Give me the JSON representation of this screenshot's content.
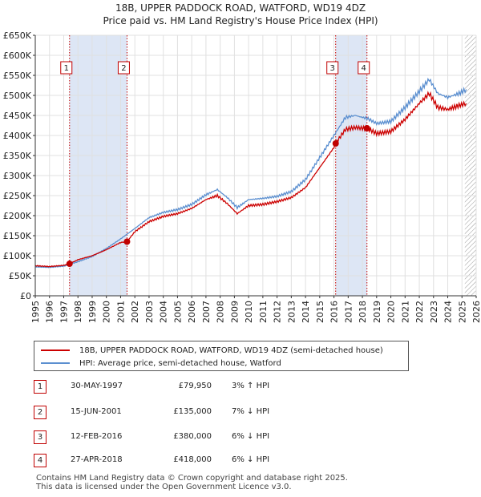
{
  "title_line1": "18B, UPPER PADDOCK ROAD, WATFORD, WD19 4DZ",
  "title_line2": "Price paid vs. HM Land Registry's House Price Index (HPI)",
  "colors": {
    "property": "#cc0000",
    "hpi": "#5b8fd0",
    "shade": "#dde6f5",
    "marker": "#c00000"
  },
  "legend": {
    "property_label": "18B, UPPER PADDOCK ROAD, WATFORD, WD19 4DZ (semi-detached house)",
    "hpi_label": "HPI: Average price, semi-detached house, Watford"
  },
  "transactions": [
    {
      "marker": "1",
      "date": "30-MAY-1997",
      "price": "£79,950",
      "hpi_change": "3% ↑ HPI",
      "x": 1997.41,
      "y": 79950
    },
    {
      "marker": "2",
      "date": "15-JUN-2001",
      "price": "£135,000",
      "hpi_change": "7% ↓ HPI",
      "x": 2001.45,
      "y": 135000
    },
    {
      "marker": "3",
      "date": "12-FEB-2016",
      "price": "£380,000",
      "hpi_change": "6% ↓ HPI",
      "x": 2016.12,
      "y": 380000
    },
    {
      "marker": "4",
      "date": "27-APR-2018",
      "price": "£418,000",
      "hpi_change": "6% ↓ HPI",
      "x": 2018.32,
      "y": 418000
    }
  ],
  "footer": {
    "line1": "Contains HM Land Registry data © Crown copyright and database right 2025.",
    "line2": "This data is licensed under the Open Government Licence v3.0."
  },
  "chart_data": {
    "type": "line",
    "title": "Price paid vs. HM Land Registry's House Price Index (HPI)",
    "xlabel": "",
    "ylabel": "",
    "xlim": [
      1995,
      2026
    ],
    "ylim": [
      0,
      650000
    ],
    "grid": true,
    "legend_position": "below",
    "x_ticks": [
      "1995",
      "1996",
      "1997",
      "1998",
      "1999",
      "2000",
      "2001",
      "2002",
      "2003",
      "2004",
      "2005",
      "2006",
      "2007",
      "2008",
      "2009",
      "2010",
      "2011",
      "2012",
      "2013",
      "2014",
      "2015",
      "2016",
      "2017",
      "2018",
      "2019",
      "2020",
      "2021",
      "2022",
      "2023",
      "2024",
      "2025",
      "2026"
    ],
    "y_ticks": [
      "£0",
      "£50K",
      "£100K",
      "£150K",
      "£200K",
      "£250K",
      "£300K",
      "£350K",
      "£400K",
      "£450K",
      "£500K",
      "£550K",
      "£600K",
      "£650K"
    ],
    "shaded_ranges": [
      [
        1997.41,
        2001.45
      ],
      [
        2016.12,
        2018.32
      ]
    ],
    "future_hatch_start": 2025.2,
    "series": [
      {
        "name": "18B, UPPER PADDOCK ROAD, WATFORD, WD19 4DZ (semi-detached house)",
        "points": [
          [
            1995,
            75000
          ],
          [
            1996,
            73000
          ],
          [
            1997,
            76000
          ],
          [
            1997.41,
            79950
          ],
          [
            1998,
            90000
          ],
          [
            1999,
            100000
          ],
          [
            2000,
            115000
          ],
          [
            2001,
            133000
          ],
          [
            2001.45,
            135000
          ],
          [
            2002,
            160000
          ],
          [
            2003,
            185000
          ],
          [
            2004,
            198000
          ],
          [
            2005,
            205000
          ],
          [
            2006,
            218000
          ],
          [
            2007,
            240000
          ],
          [
            2007.8,
            250000
          ],
          [
            2008.5,
            230000
          ],
          [
            2009.2,
            205000
          ],
          [
            2010,
            225000
          ],
          [
            2011,
            228000
          ],
          [
            2012,
            235000
          ],
          [
            2013,
            245000
          ],
          [
            2014,
            270000
          ],
          [
            2015,
            320000
          ],
          [
            2016,
            370000
          ],
          [
            2016.12,
            380000
          ],
          [
            2016.8,
            415000
          ],
          [
            2017.5,
            420000
          ],
          [
            2018,
            418000
          ],
          [
            2018.32,
            418000
          ],
          [
            2019,
            405000
          ],
          [
            2020,
            410000
          ],
          [
            2021,
            440000
          ],
          [
            2022,
            480000
          ],
          [
            2022.7,
            505000
          ],
          [
            2023.3,
            470000
          ],
          [
            2024,
            465000
          ],
          [
            2024.8,
            475000
          ],
          [
            2025.3,
            480000
          ]
        ]
      },
      {
        "name": "HPI: Average price, semi-detached house, Watford",
        "points": [
          [
            1995,
            72000
          ],
          [
            1996,
            71000
          ],
          [
            1997,
            74000
          ],
          [
            1998,
            85000
          ],
          [
            1999,
            98000
          ],
          [
            2000,
            118000
          ],
          [
            2001,
            142000
          ],
          [
            2002,
            168000
          ],
          [
            2003,
            195000
          ],
          [
            2004,
            208000
          ],
          [
            2005,
            215000
          ],
          [
            2006,
            228000
          ],
          [
            2007,
            252000
          ],
          [
            2007.8,
            265000
          ],
          [
            2008.5,
            245000
          ],
          [
            2009.2,
            220000
          ],
          [
            2010,
            240000
          ],
          [
            2011,
            243000
          ],
          [
            2012,
            248000
          ],
          [
            2013,
            260000
          ],
          [
            2014,
            290000
          ],
          [
            2015,
            345000
          ],
          [
            2016,
            400000
          ],
          [
            2016.8,
            445000
          ],
          [
            2017.5,
            450000
          ],
          [
            2018,
            445000
          ],
          [
            2018.32,
            443000
          ],
          [
            2019,
            430000
          ],
          [
            2020,
            435000
          ],
          [
            2021,
            470000
          ],
          [
            2022,
            510000
          ],
          [
            2022.7,
            540000
          ],
          [
            2023.3,
            505000
          ],
          [
            2024,
            495000
          ],
          [
            2024.8,
            505000
          ],
          [
            2025.3,
            515000
          ]
        ]
      }
    ]
  }
}
